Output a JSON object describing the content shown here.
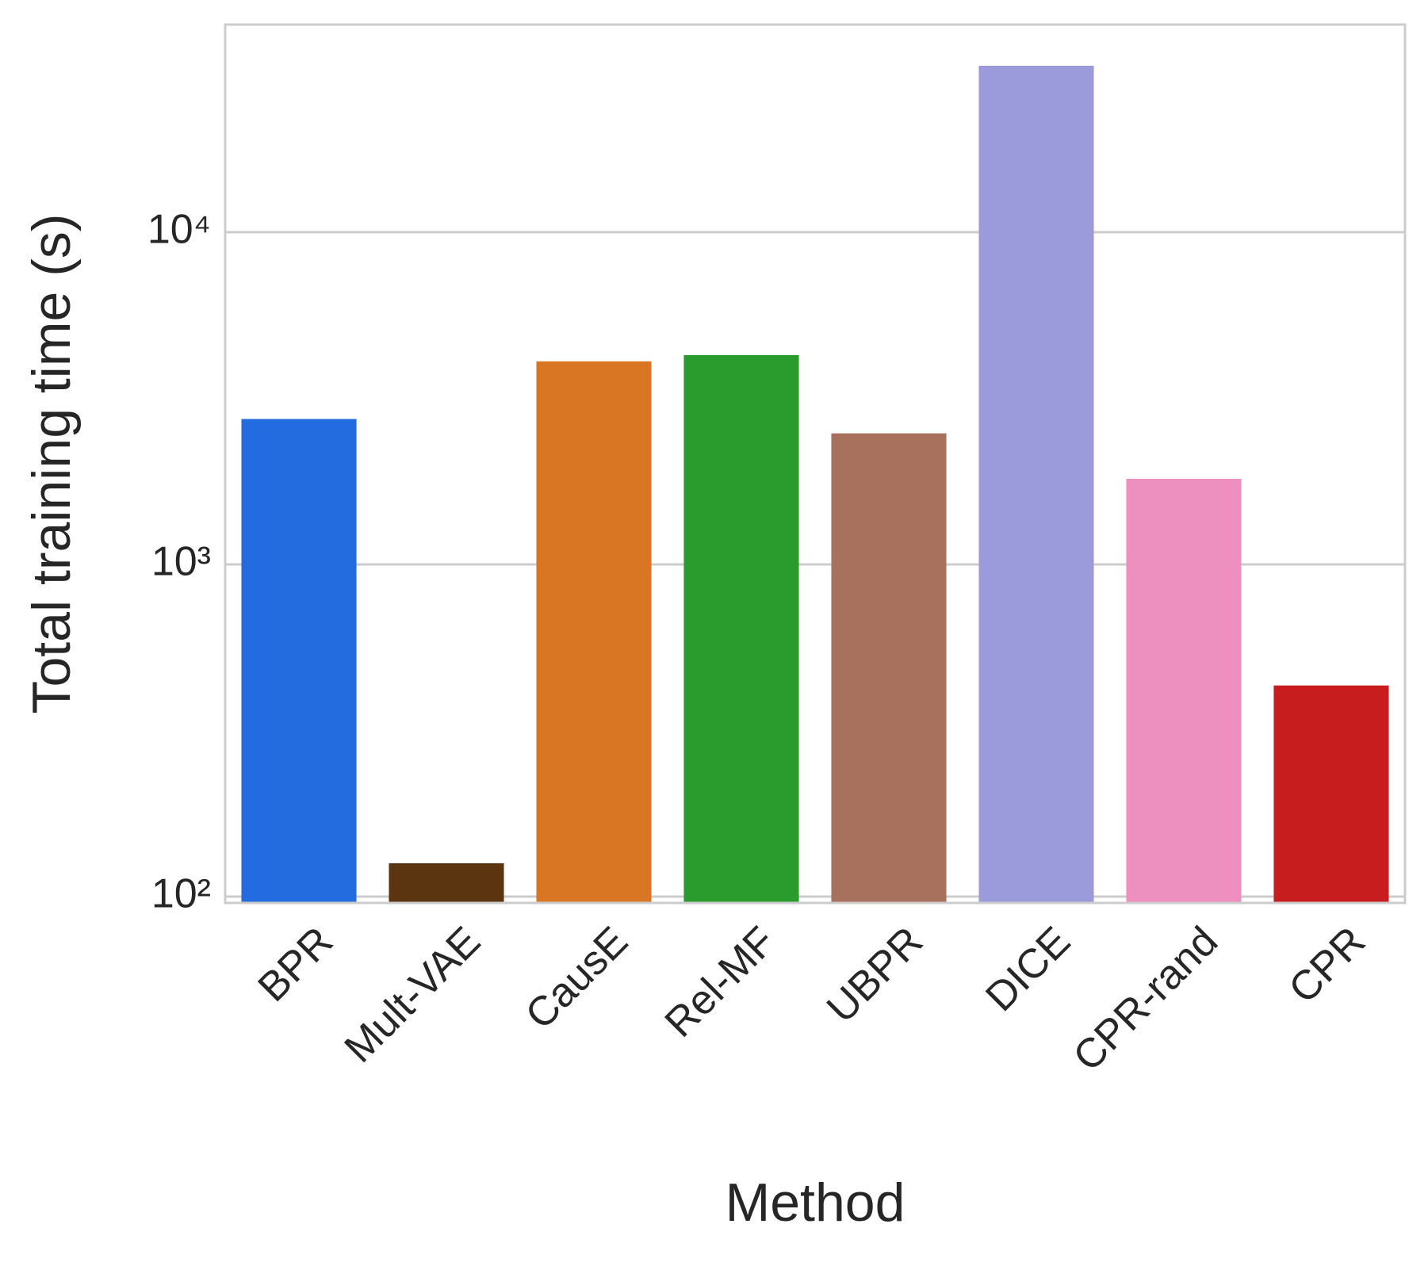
{
  "chart_data": {
    "type": "bar",
    "xlabel": "Method",
    "ylabel": "Total training time (s)",
    "categories": [
      "BPR",
      "Mult-VAE",
      "CausE",
      "Rel-MF",
      "UBPR",
      "DICE",
      "CPR-rand",
      "CPR"
    ],
    "values": [
      2740,
      126,
      4085,
      4265,
      2480,
      31700,
      1810,
      432
    ],
    "colors": [
      "#226ce0",
      "#5a3510",
      "#d97624",
      "#2a9c2d",
      "#a8715e",
      "#9b9adb",
      "#ee90bf",
      "#c81d1e"
    ],
    "ylim": [
      95.7,
      42170
    ],
    "yticks": [
      {
        "value": 100,
        "label": "10²"
      },
      {
        "value": 1000,
        "label": "10³"
      },
      {
        "value": 10000,
        "label": "10⁴"
      }
    ],
    "log_scale": true,
    "grid": true
  }
}
